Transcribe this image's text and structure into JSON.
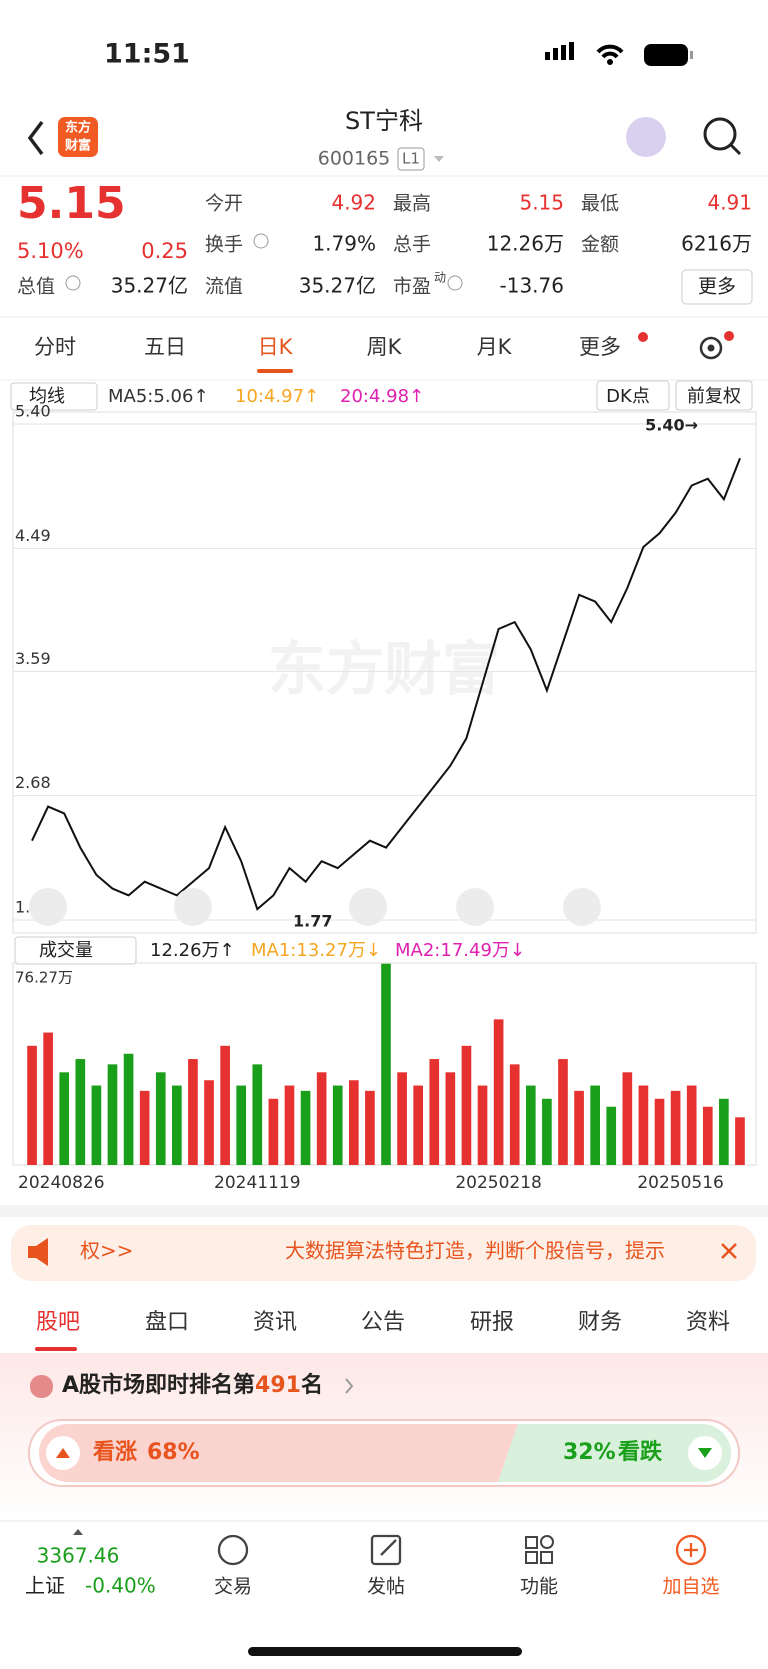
{
  "status": {
    "time": "11:51"
  },
  "header": {
    "logo": [
      "东方",
      "财富"
    ],
    "title": "ST宁科",
    "code": "600165",
    "level": "L1"
  },
  "quote": {
    "price": "5.15",
    "change_pct": "5.10%",
    "change": "0.25",
    "fields": [
      [
        {
          "label": "今开",
          "value": "4.92"
        },
        {
          "label": "最高",
          "value": "5.15"
        },
        {
          "label": "最低",
          "value": "4.91"
        }
      ],
      [
        {
          "label": "换手",
          "value": "1.79%"
        },
        {
          "label": "总手",
          "value": "12.26万"
        },
        {
          "label": "金额",
          "value": "6216万"
        }
      ],
      [
        {
          "label": "总值",
          "value": "35.27亿"
        },
        {
          "label": "流值",
          "value": "35.27亿"
        },
        {
          "label": "市盈",
          "sup": "动",
          "value": "-13.76"
        }
      ]
    ],
    "more": "更多"
  },
  "tabs": [
    "分时",
    "五日",
    "日K",
    "周K",
    "月K",
    "更多"
  ],
  "toolbar": {
    "ma_select": "均线",
    "ma5": "MA5:5.06↑",
    "ma10": "10:4.97↑",
    "ma20": "20:4.98↑",
    "dk": "DK点",
    "adjust": "前复权",
    "vol_select": "成交量",
    "vol": "12.26万↑",
    "vol_ma1": "MA1:13.27万↓",
    "vol_ma2": "MA2:17.49万↓"
  },
  "chart_data": [
    {
      "type": "line",
      "color": "#111111",
      "watermark": "东方财富",
      "grid": true,
      "annotations": [
        {
          "text": "5.40→"
        },
        {
          "text": "1.77"
        }
      ],
      "categories": [
        "20240826",
        null,
        null,
        null,
        null,
        null,
        null,
        null,
        null,
        null,
        null,
        null,
        null,
        null,
        "20241119",
        null,
        null,
        null,
        null,
        null,
        null,
        null,
        null,
        null,
        null,
        null,
        null,
        null,
        null,
        "20250218",
        null,
        null,
        null,
        null,
        null,
        null,
        null,
        null,
        null,
        null,
        null,
        null,
        null,
        "20250516",
        null
      ],
      "values": [
        2.35,
        2.6,
        2.55,
        2.3,
        2.1,
        2.0,
        1.95,
        2.05,
        2.0,
        1.95,
        2.05,
        2.15,
        2.45,
        2.2,
        1.85,
        1.95,
        2.15,
        2.05,
        2.2,
        2.15,
        2.25,
        2.35,
        2.3,
        2.45,
        2.6,
        2.75,
        2.9,
        3.1,
        3.5,
        3.9,
        3.95,
        3.75,
        3.45,
        3.8,
        4.15,
        4.1,
        3.95,
        4.2,
        4.5,
        4.6,
        4.75,
        4.95,
        5.0,
        4.85,
        5.15
      ],
      "ylim": [
        1.77,
        5.4
      ],
      "yticks": [
        {
          "value": 5.4,
          "label": "5.40"
        },
        {
          "value": 4.49,
          "label": "4.49"
        },
        3.59,
        2.68,
        1.77
      ]
    },
    {
      "type": "bar",
      "up_color": "#e5312f",
      "down_color": "#1a9f1a",
      "values": [
        45,
        50,
        35,
        40,
        30,
        38,
        42,
        28,
        35,
        30,
        40,
        32,
        45,
        30,
        38,
        25,
        30,
        28,
        35,
        30,
        32,
        28,
        76,
        35,
        30,
        40,
        35,
        45,
        30,
        55,
        38,
        30,
        25,
        40,
        28,
        30,
        22,
        35,
        30,
        25,
        28,
        30,
        22,
        25,
        18
      ],
      "ylim": [
        0,
        76.27
      ],
      "yticks": [
        {
          "value": 76.27,
          "label": "76.27万"
        }
      ]
    }
  ],
  "banner": {
    "left": "权>>",
    "text": "大数据算法特色打造，判断个股信号，提示"
  },
  "sections": [
    "股吧",
    "盘口",
    "资讯",
    "公告",
    "研报",
    "财务",
    "资料"
  ],
  "ranking": {
    "prefix": "A股市场即时排名第",
    "rank": "491",
    "suffix": "名"
  },
  "sentiment": {
    "up_label": "看涨",
    "up": "68%",
    "down": "32%",
    "down_label": "看跌"
  },
  "bottom": {
    "index_value": "3367.46",
    "index_name": "上证",
    "index_change": "-0.40%",
    "items": [
      "交易",
      "发帖",
      "功能",
      "加自选"
    ]
  }
}
